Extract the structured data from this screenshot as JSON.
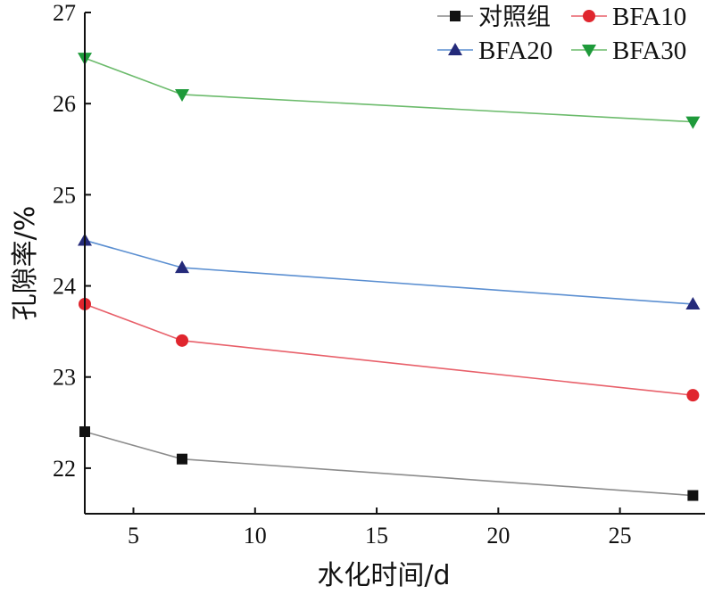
{
  "chart_data": {
    "type": "line",
    "xlabel": "水化时间/d",
    "ylabel": "孔隙率/%",
    "xlim": [
      3,
      28.5
    ],
    "ylim": [
      21.5,
      27
    ],
    "xticks": [
      5,
      10,
      15,
      20,
      25
    ],
    "yticks": [
      22,
      23,
      24,
      25,
      26,
      27
    ],
    "grid": false,
    "legend_position": "top-right",
    "x": [
      3,
      7,
      28
    ],
    "series": [
      {
        "name": "对照组",
        "values": [
          22.4,
          22.1,
          21.7
        ],
        "color": "#8c8c8c",
        "marker": "square",
        "marker_color": "#111111"
      },
      {
        "name": "BFA10",
        "values": [
          23.8,
          23.4,
          22.8
        ],
        "color": "#e8606a",
        "marker": "circle",
        "marker_color": "#e0262e"
      },
      {
        "name": "BFA20",
        "values": [
          24.5,
          24.2,
          23.8
        ],
        "color": "#5b8fd1",
        "marker": "triangle-up",
        "marker_color": "#242a7a"
      },
      {
        "name": "BFA30",
        "values": [
          26.5,
          26.1,
          25.8
        ],
        "color": "#6cbb6c",
        "marker": "triangle-down",
        "marker_color": "#1e9a3a"
      }
    ]
  }
}
